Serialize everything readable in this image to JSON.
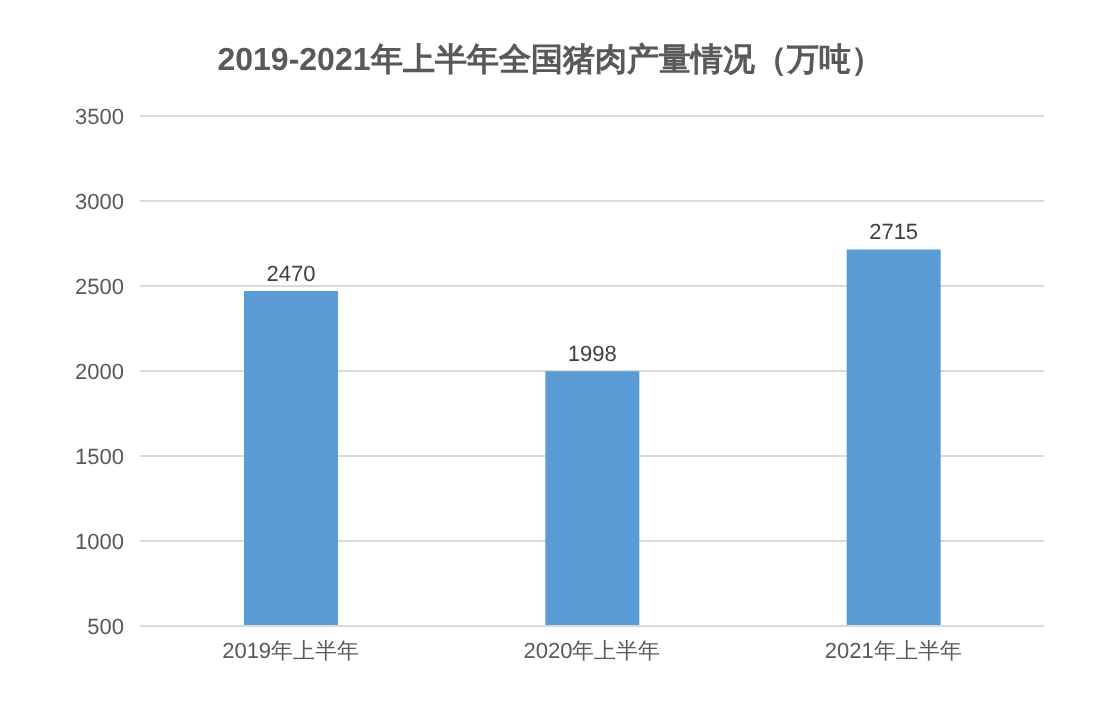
{
  "chart_data": {
    "type": "bar",
    "title": "2019-2021年上半年全国猪肉产量情况（万吨）",
    "categories": [
      "2019年上半年",
      "2020年上半年",
      "2021年上半年"
    ],
    "values": [
      2470,
      1998,
      2715
    ],
    "color": "#5b9bd5",
    "ylim": [
      500,
      3500
    ],
    "yticks": [
      500,
      1000,
      1500,
      2000,
      2500,
      3000,
      3500
    ],
    "grid": "y",
    "data_labels": true
  }
}
